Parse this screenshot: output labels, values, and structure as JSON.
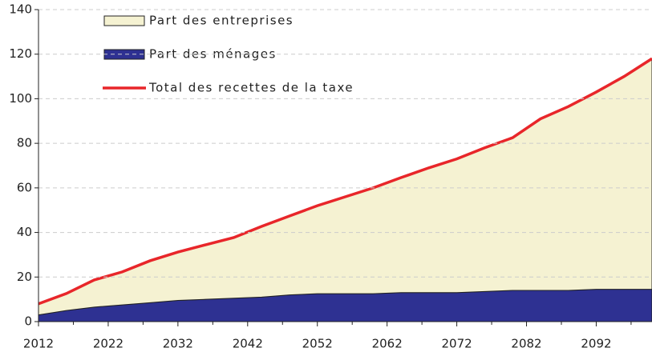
{
  "chart_data": {
    "type": "stacked_area",
    "x": [
      2012,
      2016,
      2020,
      2024,
      2028,
      2032,
      2036,
      2040,
      2044,
      2048,
      2052,
      2056,
      2060,
      2064,
      2068,
      2072,
      2076,
      2080,
      2084,
      2088,
      2092,
      2096,
      2100
    ],
    "series": [
      {
        "name": "Part des ménages",
        "color": "#2e3192",
        "values": [
          3,
          5,
          6.5,
          7.5,
          8.5,
          9.5,
          10,
          10.5,
          11,
          12,
          12.5,
          12.5,
          12.5,
          13,
          13,
          13,
          13.5,
          14,
          14,
          14,
          14.5,
          14.5,
          14.5
        ]
      },
      {
        "name": "Part des entreprises",
        "color": "#f5f2d2",
        "values": [
          5,
          7.6,
          12.2,
          14.8,
          18.8,
          21.7,
          24.5,
          27.2,
          31.7,
          35.4,
          39.5,
          43.5,
          47.5,
          51.6,
          56,
          60,
          64.5,
          68.5,
          77,
          82.5,
          88.5,
          95.5,
          103.5
        ]
      },
      {
        "name": "Total des recettes de la taxe",
        "color": "#e8262a",
        "line": true,
        "values": [
          8,
          12.6,
          18.7,
          22.3,
          27.3,
          31.2,
          34.5,
          37.7,
          42.7,
          47.4,
          52,
          56,
          60,
          64.6,
          69,
          73,
          78,
          82.5,
          91,
          96.5,
          103,
          110,
          118
        ]
      }
    ],
    "xlim": [
      2012,
      2100
    ],
    "xticks": [
      2012,
      2022,
      2032,
      2042,
      2052,
      2062,
      2072,
      2082,
      2092
    ],
    "xticks_minor": [
      2017,
      2027,
      2037,
      2047,
      2057,
      2067,
      2077,
      2087,
      2097
    ],
    "ylim": [
      0,
      140
    ],
    "yticks": [
      0,
      20,
      40,
      60,
      80,
      100,
      120,
      140
    ],
    "grid": true
  }
}
